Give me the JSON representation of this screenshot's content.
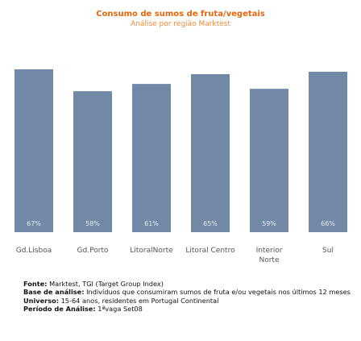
{
  "chart_data": {
    "type": "bar",
    "title": "Consumo de sumos de fruta/vegetais",
    "subtitle": "Análise por região Marktest",
    "categories": [
      [
        "Gd.Lisboa"
      ],
      [
        "Gd.Porto"
      ],
      [
        "LitoralNorte"
      ],
      [
        "Litoral Centro"
      ],
      [
        "Interior",
        "Norte"
      ],
      [
        "Sul"
      ]
    ],
    "values": [
      67,
      58,
      61,
      65,
      59,
      66
    ],
    "value_suffix": "%",
    "ylim": [
      0,
      67
    ],
    "grid": false,
    "legend": "none",
    "colors": {
      "bar": "#7189a6",
      "title": "#e8650c",
      "subtitle": "#f08a3a"
    }
  },
  "notes": {
    "fonte_label": "Fonte:",
    "fonte_value": " Marktest, TGI (Target Group Index)",
    "base_label": "Base de análise:",
    "base_value": " Indivíduos que consumiram sumos de fruta e/ou vegetais nos últimos 12 meses",
    "universo_label": "Universo:",
    "universo_value": " 15-64 anos, residentes em Portugal Continental",
    "periodo_label": "Período de Análise:",
    "periodo_value": " 1ªvaga Set08"
  }
}
